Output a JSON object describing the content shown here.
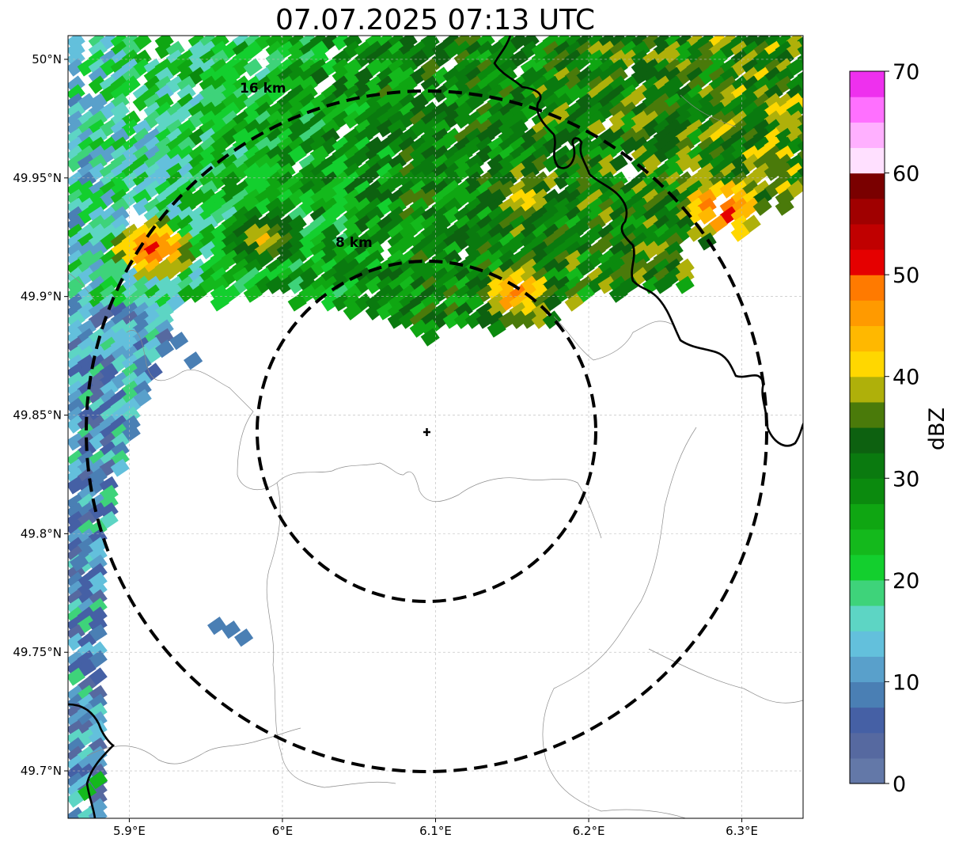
{
  "title": "07.07.2025 07:13 UTC",
  "map": {
    "lon_range": [
      5.86,
      6.34
    ],
    "lat_range": [
      49.68,
      50.01
    ],
    "lon_ticks": [
      {
        "value": 5.9,
        "label": "5.9°E"
      },
      {
        "value": 6.0,
        "label": "6°E"
      },
      {
        "value": 6.1,
        "label": "6.1°E"
      },
      {
        "value": 6.2,
        "label": "6.2°E"
      },
      {
        "value": 6.3,
        "label": "6.3°E"
      }
    ],
    "lat_ticks": [
      {
        "value": 50.0,
        "label": "50°N"
      },
      {
        "value": 49.95,
        "label": "49.95°N"
      },
      {
        "value": 49.9,
        "label": "49.9°N"
      },
      {
        "value": 49.85,
        "label": "49.85°N"
      },
      {
        "value": 49.8,
        "label": "49.8°N"
      },
      {
        "value": 49.75,
        "label": "49.75°N"
      },
      {
        "value": 49.7,
        "label": "49.7°N"
      }
    ],
    "gridlines": true,
    "radar_site": {
      "lon": 6.094,
      "lat": 49.843
    },
    "range_rings": [
      {
        "radius_km": 8,
        "label": "8 km"
      },
      {
        "radius_km": 16,
        "label": "16 km"
      }
    ],
    "boundary_color": "#000000",
    "admin_line_color": "#8c8c8c"
  },
  "colorbar": {
    "label": "dBZ",
    "min": 0,
    "max": 70,
    "ticks": [
      0,
      10,
      20,
      30,
      40,
      50,
      60,
      70
    ],
    "colors": [
      "#6378a8",
      "#5669a0",
      "#4560a5",
      "#4a7fb4",
      "#59a0cb",
      "#63c0dc",
      "#5dd5c4",
      "#3ed37a",
      "#13cf2e",
      "#14b91c",
      "#0fa612",
      "#0b8a0e",
      "#0a7a0f",
      "#0d6110",
      "#4a7a0a",
      "#afb00a",
      "#ffd700",
      "#ffb800",
      "#ff9a00",
      "#ff7a00",
      "#e50000",
      "#c00000",
      "#a00000",
      "#7a0000",
      "#ffe0ff",
      "#ffb0ff",
      "#ff70ff",
      "#ee30ee"
    ]
  }
}
